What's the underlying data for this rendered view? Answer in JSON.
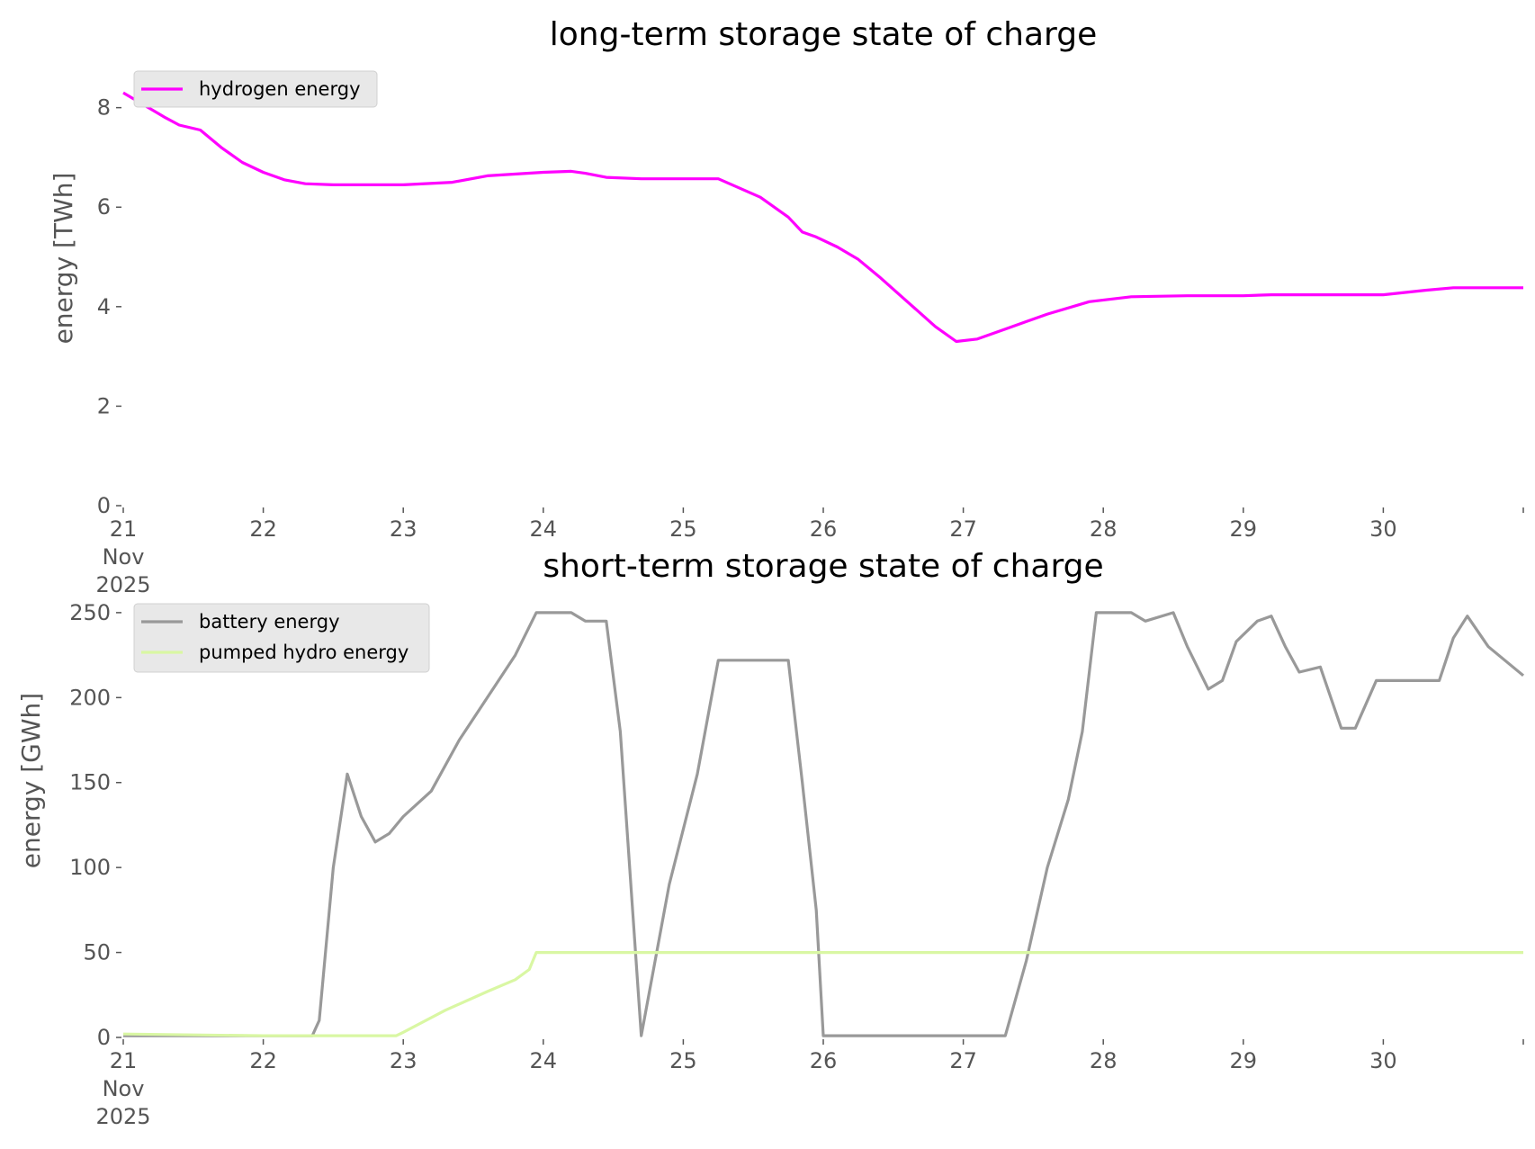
{
  "chart_data": [
    {
      "type": "line",
      "title": "long-term storage state of charge",
      "ylabel": "energy [TWh]",
      "xlabel": "",
      "xlim": [
        21,
        31
      ],
      "ylim": [
        0,
        8.5
      ],
      "yticks": [
        0,
        2,
        4,
        6,
        8
      ],
      "xticks": [
        {
          "v": 21,
          "lines": [
            "21",
            "Nov",
            "2025"
          ]
        },
        {
          "v": 22,
          "lines": [
            "22"
          ]
        },
        {
          "v": 23,
          "lines": [
            "23"
          ]
        },
        {
          "v": 24,
          "lines": [
            "24"
          ]
        },
        {
          "v": 25,
          "lines": [
            "25"
          ]
        },
        {
          "v": 26,
          "lines": [
            "26"
          ]
        },
        {
          "v": 27,
          "lines": [
            "27"
          ]
        },
        {
          "v": 28,
          "lines": [
            "28"
          ]
        },
        {
          "v": 29,
          "lines": [
            "29"
          ]
        },
        {
          "v": 30,
          "lines": [
            "30"
          ]
        }
      ],
      "grid": false,
      "legend": "top-left",
      "series": [
        {
          "name": "hydrogen energy",
          "color": "#ff00ff",
          "x": [
            21.0,
            21.3,
            21.4,
            21.55,
            21.7,
            21.85,
            22.0,
            22.15,
            22.3,
            22.5,
            23.0,
            23.35,
            23.6,
            24.0,
            24.2,
            24.3,
            24.45,
            24.7,
            25.0,
            25.25,
            25.55,
            25.75,
            25.85,
            25.95,
            26.1,
            26.25,
            26.4,
            26.6,
            26.8,
            26.95,
            27.1,
            27.3,
            27.6,
            27.9,
            28.2,
            28.6,
            29.0,
            29.2,
            29.6,
            30.0,
            30.3,
            30.5,
            31.0
          ],
          "y": [
            8.3,
            7.8,
            7.65,
            7.55,
            7.2,
            6.9,
            6.7,
            6.55,
            6.47,
            6.45,
            6.45,
            6.5,
            6.63,
            6.7,
            6.72,
            6.68,
            6.6,
            6.57,
            6.57,
            6.57,
            6.2,
            5.8,
            5.5,
            5.4,
            5.2,
            4.95,
            4.6,
            4.1,
            3.6,
            3.3,
            3.35,
            3.55,
            3.85,
            4.1,
            4.2,
            4.22,
            4.22,
            4.24,
            4.24,
            4.24,
            4.33,
            4.38,
            4.38
          ]
        }
      ]
    },
    {
      "type": "line",
      "title": "short-term storage state of charge",
      "ylabel": "energy [GWh]",
      "xlabel": "",
      "xlim": [
        21,
        31
      ],
      "ylim": [
        0,
        260
      ],
      "yticks": [
        0,
        50,
        100,
        150,
        200,
        250
      ],
      "xticks": [
        {
          "v": 21,
          "lines": [
            "21",
            "Nov",
            "2025"
          ]
        },
        {
          "v": 22,
          "lines": [
            "22"
          ]
        },
        {
          "v": 23,
          "lines": [
            "23"
          ]
        },
        {
          "v": 24,
          "lines": [
            "24"
          ]
        },
        {
          "v": 25,
          "lines": [
            "25"
          ]
        },
        {
          "v": 26,
          "lines": [
            "26"
          ]
        },
        {
          "v": 27,
          "lines": [
            "27"
          ]
        },
        {
          "v": 28,
          "lines": [
            "28"
          ]
        },
        {
          "v": 29,
          "lines": [
            "29"
          ]
        },
        {
          "v": 30,
          "lines": [
            "30"
          ]
        }
      ],
      "grid": false,
      "legend": "top-left",
      "series": [
        {
          "name": "battery energy",
          "color": "#999999",
          "x": [
            21.0,
            22.35,
            22.4,
            22.5,
            22.6,
            22.7,
            22.8,
            22.9,
            23.0,
            23.2,
            23.4,
            23.6,
            23.8,
            23.95,
            24.2,
            24.3,
            24.45,
            24.55,
            24.7,
            24.9,
            25.1,
            25.25,
            25.5,
            25.75,
            25.85,
            25.95,
            26.0,
            27.3,
            27.45,
            27.6,
            27.75,
            27.85,
            27.95,
            28.2,
            28.3,
            28.5,
            28.6,
            28.75,
            28.85,
            28.95,
            29.1,
            29.2,
            29.3,
            29.4,
            29.55,
            29.7,
            29.8,
            29.95,
            30.1,
            30.4,
            30.5,
            30.6,
            30.75,
            31.0
          ],
          "y": [
            1,
            1,
            10,
            100,
            155,
            130,
            115,
            120,
            130,
            145,
            175,
            200,
            225,
            250,
            250,
            245,
            245,
            180,
            1,
            90,
            155,
            222,
            222,
            222,
            150,
            75,
            1,
            1,
            45,
            100,
            140,
            180,
            250,
            250,
            245,
            250,
            230,
            205,
            210,
            233,
            245,
            248,
            230,
            215,
            218,
            182,
            182,
            210,
            210,
            210,
            235,
            248,
            230,
            213
          ]
        },
        {
          "name": "pumped hydro energy",
          "color": "#d9f7a3",
          "x": [
            21.0,
            21.5,
            22.0,
            22.95,
            23.0,
            23.3,
            23.6,
            23.8,
            23.9,
            23.95,
            24.0,
            31.0
          ],
          "y": [
            2,
            1.5,
            1,
            1,
            3,
            16,
            27,
            34,
            40,
            50,
            50,
            50
          ]
        }
      ]
    }
  ]
}
